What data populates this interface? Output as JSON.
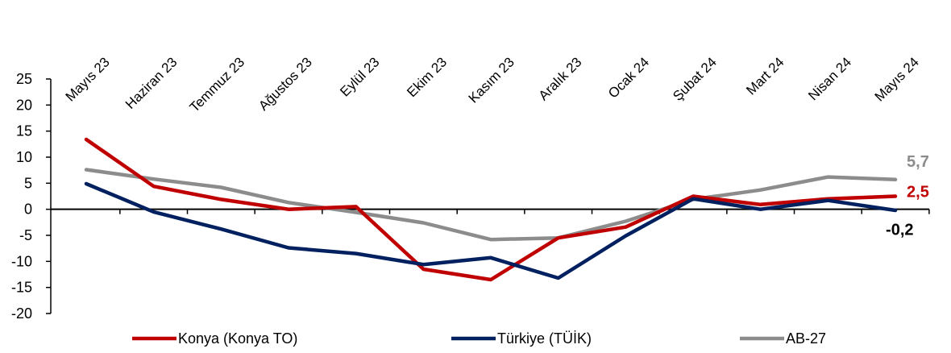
{
  "chart_data": {
    "type": "line",
    "categories": [
      "Mayıs 23",
      "Haziran 23",
      "Temmuz 23",
      "Ağustos 23",
      "Eylül 23",
      "Ekim 23",
      "Kasım 23",
      "Aralık 23",
      "Ocak 24",
      "Şubat 24",
      "Mart 24",
      "Nisan 24",
      "Mayıs 24"
    ],
    "ylim": [
      -20,
      25
    ],
    "yticks": [
      "25",
      "20",
      "15",
      "10",
      "5",
      "0",
      "-5",
      "-10",
      "-15",
      "-20"
    ],
    "ytick_values": [
      25,
      20,
      15,
      10,
      5,
      0,
      -5,
      -10,
      -15,
      -20
    ],
    "grid": false,
    "legend_position": "bottom",
    "series": [
      {
        "name": "Konya (Konya TO)",
        "color": "#c00000",
        "values": [
          13.4,
          4.4,
          1.9,
          0.0,
          0.5,
          -11.5,
          -13.5,
          -5.5,
          -3.4,
          2.5,
          0.9,
          2.0,
          2.5
        ],
        "end_label": "2,5"
      },
      {
        "name": "Türkiye (TÜİK)",
        "color": "#002060",
        "values": [
          4.9,
          -0.5,
          -3.8,
          -7.4,
          -8.5,
          -10.6,
          -9.3,
          -13.2,
          -5.1,
          2.0,
          0.0,
          1.7,
          -0.2
        ],
        "end_label": "-0,2"
      },
      {
        "name": "AB-27",
        "color": "#8c8c8c",
        "values": [
          7.6,
          5.8,
          4.2,
          1.3,
          -0.6,
          -2.6,
          -5.8,
          -5.5,
          -2.3,
          1.9,
          3.7,
          6.2,
          5.7
        ],
        "end_label": "5,7"
      }
    ]
  }
}
